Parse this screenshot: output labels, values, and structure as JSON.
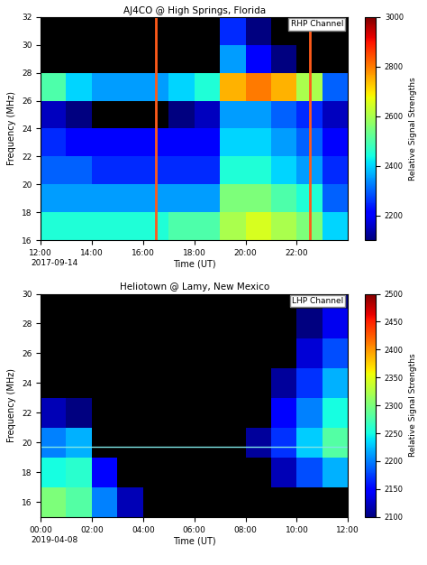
{
  "chart_data": [
    {
      "type": "heatmap",
      "title": "AJ4CO @ High Springs, Florida",
      "channel_label": "RHP Channel",
      "x_label": "Time (UT)",
      "y_label": "Frequency (MHz)",
      "colorbar_label": "Relative Signal Strengths",
      "date": "2017-09-14",
      "xlim": [
        12,
        24
      ],
      "ylim": [
        16,
        32
      ],
      "xticks": [
        {
          "value": 12,
          "label": "12:00"
        },
        {
          "value": 14,
          "label": "14:00"
        },
        {
          "value": 16,
          "label": "16:00"
        },
        {
          "value": 18,
          "label": "18:00"
        },
        {
          "value": 20,
          "label": "20:00"
        },
        {
          "value": 22,
          "label": "22:00"
        }
      ],
      "yticks": [
        16,
        18,
        20,
        22,
        24,
        26,
        28,
        30,
        32
      ],
      "x_edges": [
        12,
        13,
        14,
        15,
        16,
        17,
        18,
        19,
        20,
        21,
        22,
        23,
        24
      ],
      "y_edges": [
        16,
        18,
        20,
        22,
        24,
        26,
        28,
        30,
        32
      ],
      "cells": [
        [
          2450,
          2450,
          2450,
          2450,
          2450,
          2500,
          2500,
          2600,
          2650,
          2600,
          2550,
          2400
        ],
        [
          2350,
          2350,
          2350,
          2350,
          2350,
          2350,
          2350,
          2550,
          2550,
          2500,
          2450,
          2300
        ],
        [
          2300,
          2300,
          2250,
          2250,
          2250,
          2250,
          2250,
          2450,
          2450,
          2400,
          2350,
          2250
        ],
        [
          2250,
          2200,
          2200,
          2200,
          2200,
          2200,
          2200,
          2400,
          2400,
          2350,
          2300,
          2200
        ],
        [
          2150,
          2100,
          2050,
          2050,
          2050,
          2100,
          2150,
          2350,
          2350,
          2300,
          2250,
          2150
        ],
        [
          2500,
          2400,
          2350,
          2350,
          2350,
          2400,
          2450,
          2750,
          2800,
          2750,
          2600,
          2300
        ],
        [
          2000,
          2000,
          2000,
          2000,
          2000,
          2000,
          2000,
          2350,
          2200,
          2100,
          2050,
          2000
        ],
        [
          2000,
          2000,
          2000,
          2000,
          2000,
          2000,
          2000,
          2250,
          2100,
          2050,
          2050,
          2000
        ]
      ],
      "color_range": [
        2100,
        3000
      ],
      "color_ticks": [
        2200,
        2400,
        2600,
        2800,
        3000
      ],
      "vertical_lines": [
        16.5,
        22.5
      ]
    },
    {
      "type": "heatmap",
      "title": "Heliotown @ Lamy, New Mexico",
      "channel_label": "LHP Channel",
      "x_label": "Time (UT)",
      "y_label": "Frequency (MHz)",
      "colorbar_label": "Relative Signal Strengths",
      "date": "2019-04-08",
      "xlim": [
        0,
        12
      ],
      "ylim": [
        15,
        30
      ],
      "xticks": [
        {
          "value": 0,
          "label": "00:00"
        },
        {
          "value": 2,
          "label": "02:00"
        },
        {
          "value": 4,
          "label": "04:00"
        },
        {
          "value": 6,
          "label": "06:00"
        },
        {
          "value": 8,
          "label": "08:00"
        },
        {
          "value": 10,
          "label": "10:00"
        },
        {
          "value": 12,
          "label": "12:00"
        }
      ],
      "yticks": [
        16,
        18,
        20,
        22,
        24,
        26,
        28,
        30
      ],
      "x_edges": [
        0,
        1,
        2,
        3,
        4,
        5,
        6,
        7,
        8,
        9,
        10,
        11,
        12
      ],
      "y_edges": [
        15,
        17,
        19,
        21,
        23,
        25,
        27,
        29,
        30
      ],
      "cells": [
        [
          2300,
          2280,
          2200,
          2120,
          2050,
          2050,
          2050,
          2050,
          2050,
          2050,
          2050,
          2050
        ],
        [
          2250,
          2260,
          2150,
          2080,
          2050,
          2050,
          2050,
          2050,
          2050,
          2120,
          2180,
          2220
        ],
        [
          2200,
          2220,
          2080,
          2050,
          2050,
          2050,
          2050,
          2050,
          2110,
          2170,
          2230,
          2280
        ],
        [
          2120,
          2100,
          2050,
          2050,
          2050,
          2050,
          2050,
          2050,
          2080,
          2150,
          2200,
          2250
        ],
        [
          2050,
          2050,
          2050,
          2050,
          2050,
          2050,
          2050,
          2050,
          2050,
          2110,
          2170,
          2220
        ],
        [
          2050,
          2050,
          2050,
          2050,
          2050,
          2050,
          2050,
          2050,
          2050,
          2050,
          2130,
          2180
        ],
        [
          2080,
          2050,
          2050,
          2050,
          2050,
          2050,
          2050,
          2050,
          2050,
          2050,
          2100,
          2140
        ],
        [
          2050,
          2050,
          2050,
          2050,
          2050,
          2050,
          2050,
          2050,
          2050,
          2050,
          2050,
          2100
        ]
      ],
      "color_range": [
        2100,
        2500
      ],
      "color_ticks": [
        2100,
        2150,
        2200,
        2250,
        2300,
        2350,
        2400,
        2450,
        2500
      ],
      "horizontal_lines": [
        19.7
      ]
    }
  ]
}
